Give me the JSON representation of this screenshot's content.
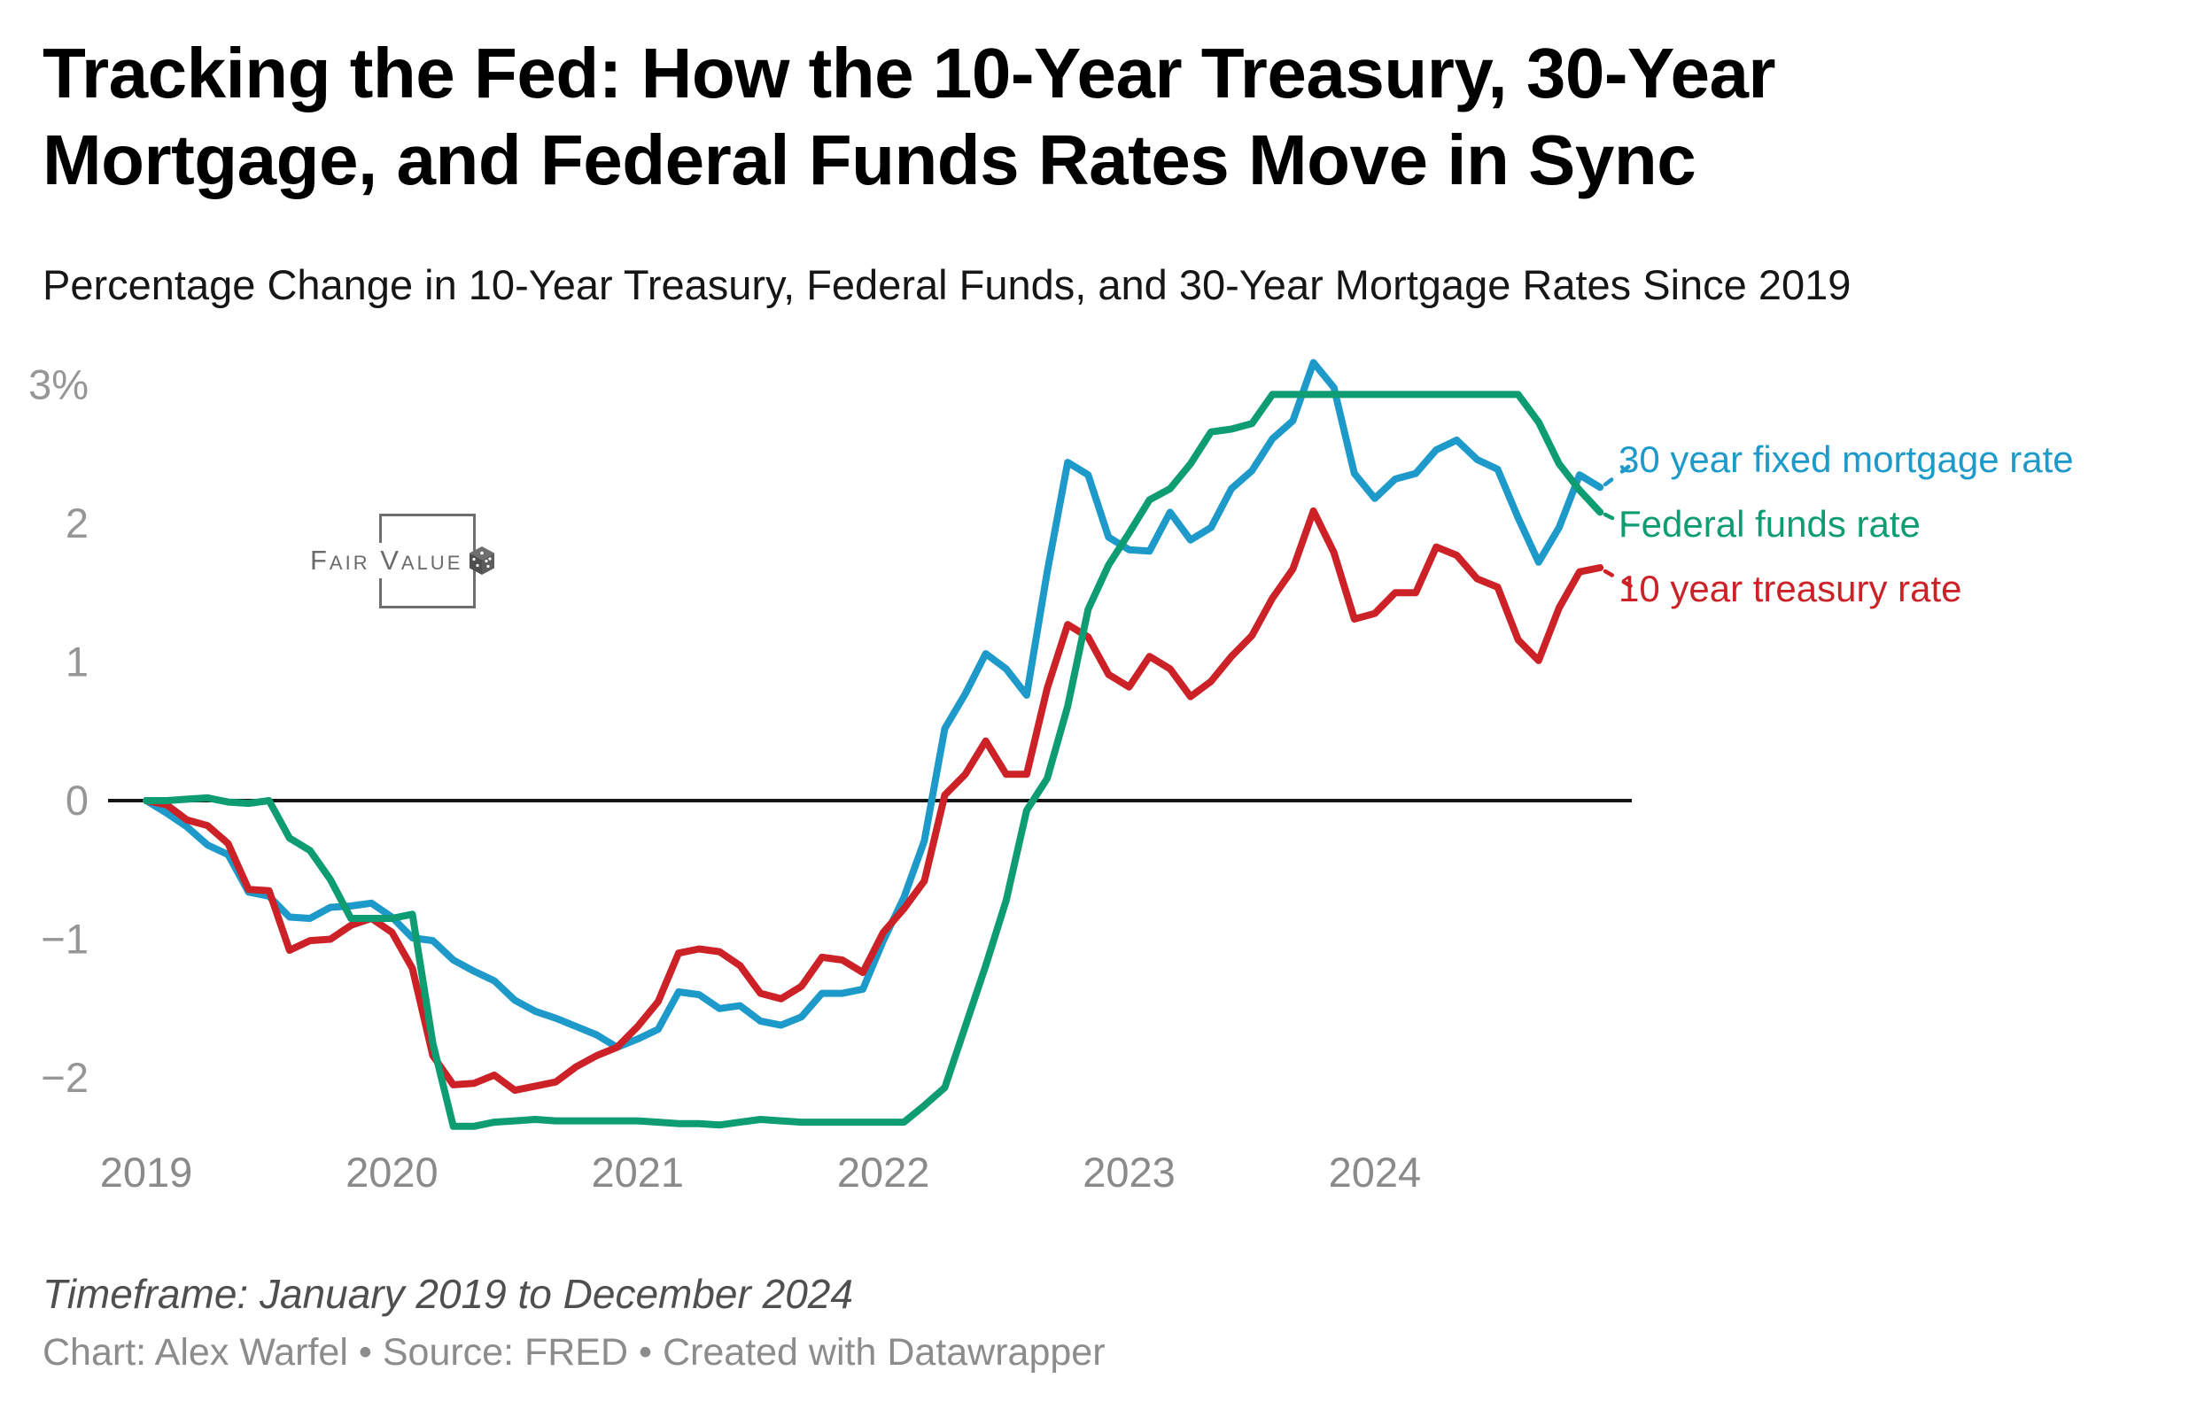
{
  "header": {
    "title_lines": [
      "Tracking the Fed: How the 10-Year Treasury, 30-Year",
      "Mortgage, and Federal Funds Rates Move in Sync"
    ],
    "subtitle": "Percentage Change in 10-Year Treasury, Federal Funds, and 30-Year Mortgage Rates Since 2019"
  },
  "watermark": {
    "text": "Fair Value",
    "icon": "dice-icon"
  },
  "footer": {
    "timeframe": "Timeframe: January 2019 to December 2024",
    "attribution": "Chart: Alex Warfel • Source: FRED • Created with Datawrapper"
  },
  "chart_data": {
    "type": "line",
    "title": "Tracking the Fed: How the 10-Year Treasury, 30-Year Mortgage, and Federal Funds Rates Move in Sync",
    "subtitle": "Percentage Change in 10-Year Treasury, Federal Funds, and 30-Year Mortgage Rates Since 2019",
    "x_unit": "month",
    "x_start": "2019-01",
    "x_end": "2024-12",
    "ylim": [
      -2.6,
      3.3
    ],
    "grid": false,
    "zero_baseline": true,
    "legend_position": "right-of-line-ends",
    "y_ticks": [
      {
        "label": "3%",
        "value": 3
      },
      {
        "label": "2",
        "value": 2
      },
      {
        "label": "1",
        "value": 1
      },
      {
        "label": "0",
        "value": 0
      },
      {
        "label": "−1",
        "value": -1
      },
      {
        "label": "−2",
        "value": -2
      }
    ],
    "x_ticks": [
      {
        "label": "2019",
        "month_index": 0
      },
      {
        "label": "2020",
        "month_index": 12
      },
      {
        "label": "2021",
        "month_index": 24
      },
      {
        "label": "2022",
        "month_index": 36
      },
      {
        "label": "2023",
        "month_index": 48
      },
      {
        "label": "2024",
        "month_index": 60
      }
    ],
    "series": [
      {
        "name": "30 year fixed mortgage rate",
        "color": "#1d9ac9",
        "values": [
          0.0,
          -0.09,
          -0.19,
          -0.32,
          -0.39,
          -0.66,
          -0.69,
          -0.84,
          -0.85,
          -0.77,
          -0.76,
          -0.74,
          -0.84,
          -0.99,
          -1.01,
          -1.15,
          -1.23,
          -1.3,
          -1.44,
          -1.52,
          -1.57,
          -1.63,
          -1.69,
          -1.78,
          -1.72,
          -1.65,
          -1.38,
          -1.4,
          -1.5,
          -1.48,
          -1.59,
          -1.62,
          -1.56,
          -1.39,
          -1.39,
          -1.36,
          -1.01,
          -0.7,
          -0.29,
          0.52,
          0.77,
          1.06,
          0.95,
          0.76,
          1.65,
          2.44,
          2.35,
          1.9,
          1.81,
          1.8,
          2.08,
          1.88,
          1.97,
          2.25,
          2.38,
          2.61,
          2.74,
          3.16,
          2.98,
          2.36,
          2.18,
          2.32,
          2.36,
          2.53,
          2.6,
          2.46,
          2.39,
          2.04,
          1.72,
          1.97,
          2.35,
          2.26
        ]
      },
      {
        "name": "10 year treasury rate",
        "color": "#cc2127",
        "values": [
          0.0,
          -0.03,
          -0.14,
          -0.18,
          -0.31,
          -0.64,
          -0.65,
          -1.08,
          -1.01,
          -1.0,
          -0.9,
          -0.85,
          -0.95,
          -1.21,
          -1.84,
          -2.05,
          -2.04,
          -1.98,
          -2.09,
          -2.06,
          -2.03,
          -1.92,
          -1.84,
          -1.78,
          -1.63,
          -1.45,
          -1.1,
          -1.07,
          -1.09,
          -1.19,
          -1.39,
          -1.43,
          -1.34,
          -1.13,
          -1.15,
          -1.24,
          -0.95,
          -0.78,
          -0.58,
          0.04,
          0.19,
          0.43,
          0.19,
          0.19,
          0.81,
          1.27,
          1.18,
          0.91,
          0.82,
          1.04,
          0.95,
          0.75,
          0.86,
          1.04,
          1.19,
          1.46,
          1.67,
          2.09,
          1.79,
          1.31,
          1.35,
          1.5,
          1.5,
          1.83,
          1.77,
          1.6,
          1.54,
          1.16,
          1.01,
          1.39,
          1.65,
          1.68
        ]
      },
      {
        "name": "Federal funds rate",
        "color": "#0e9c72",
        "values": [
          0.0,
          0.0,
          0.01,
          0.02,
          -0.01,
          -0.02,
          0.0,
          -0.27,
          -0.36,
          -0.57,
          -0.85,
          -0.85,
          -0.85,
          -0.82,
          -1.75,
          -2.35,
          -2.35,
          -2.32,
          -2.31,
          -2.3,
          -2.31,
          -2.31,
          -2.31,
          -2.31,
          -2.31,
          -2.32,
          -2.33,
          -2.33,
          -2.34,
          -2.32,
          -2.3,
          -2.31,
          -2.32,
          -2.32,
          -2.32,
          -2.32,
          -2.32,
          -2.32,
          -2.2,
          -2.07,
          -1.63,
          -1.19,
          -0.72,
          -0.07,
          0.16,
          0.68,
          1.38,
          1.7,
          1.93,
          2.17,
          2.25,
          2.43,
          2.66,
          2.68,
          2.72,
          2.93,
          2.93,
          2.93,
          2.93,
          2.93,
          2.93,
          2.93,
          2.93,
          2.93,
          2.93,
          2.93,
          2.93,
          2.93,
          2.73,
          2.43,
          2.24,
          2.08
        ]
      }
    ]
  }
}
